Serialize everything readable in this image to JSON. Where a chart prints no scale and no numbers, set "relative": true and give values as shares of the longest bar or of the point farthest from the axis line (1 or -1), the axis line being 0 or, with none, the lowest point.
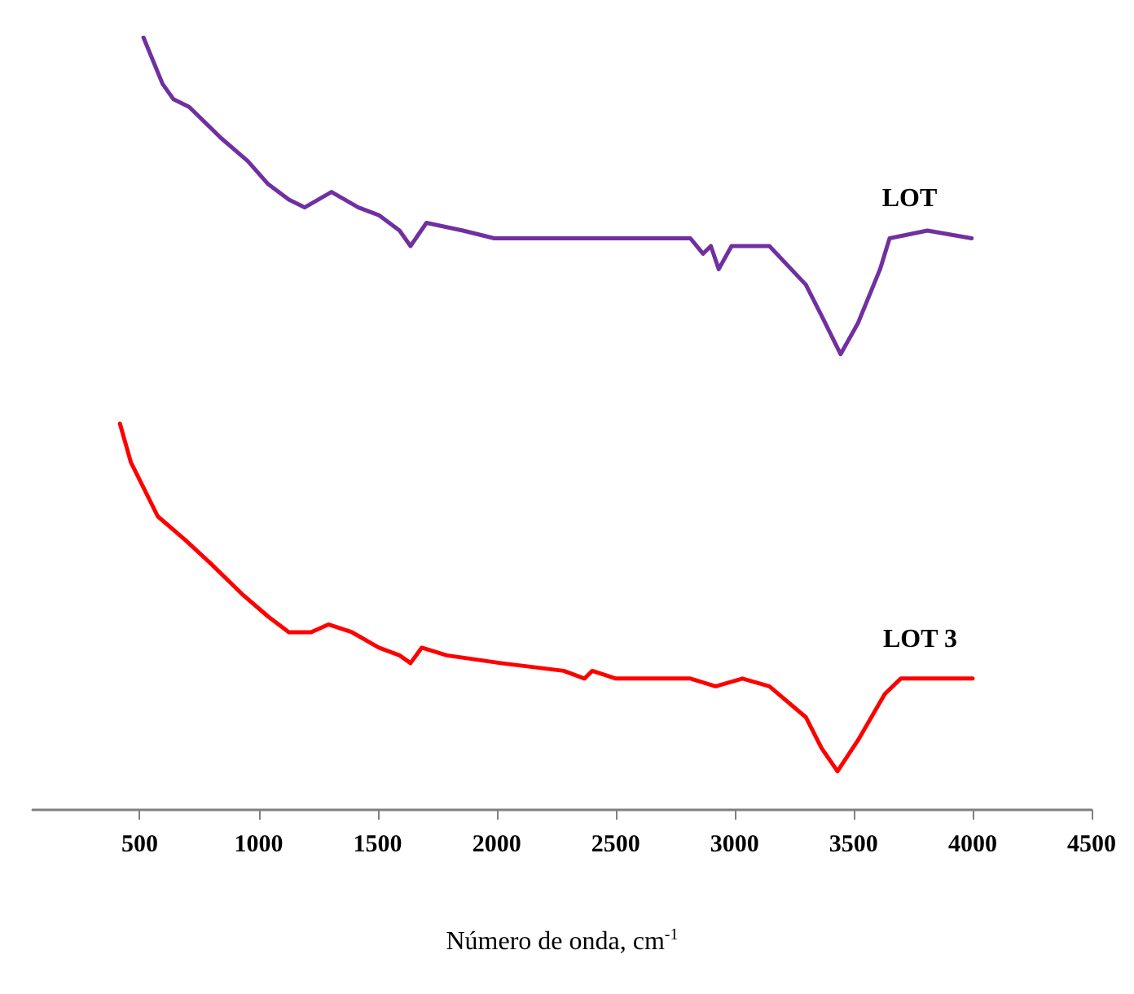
{
  "chart_data": {
    "type": "line",
    "relative": true,
    "xlabel": "Número de onda, cm$^{-1}$",
    "xlim": [
      50,
      4500
    ],
    "xticks": [
      500,
      1000,
      1500,
      2000,
      2500,
      3000,
      3500,
      4000,
      4500
    ],
    "grid": false,
    "legend": false,
    "marker": "none",
    "line_style": "solid",
    "series": [
      {
        "name": "LOT",
        "color": "#7030a0",
        "x": [
          516,
          596,
          642,
          708,
          841,
          954,
          1040,
          1127,
          1193,
          1306,
          1419,
          1505,
          1592,
          1638,
          1705,
          1858,
          1990,
          2303,
          2501,
          2814,
          2867,
          2900,
          2933,
          2987,
          3146,
          3299,
          3365,
          3445,
          3518,
          3611,
          3651,
          3810,
          3996
        ],
        "values": [
          1.0,
          0.94,
          0.92,
          0.91,
          0.87,
          0.84,
          0.81,
          0.79,
          0.78,
          0.8,
          0.78,
          0.77,
          0.75,
          0.73,
          0.76,
          0.75,
          0.74,
          0.74,
          0.74,
          0.74,
          0.72,
          0.73,
          0.7,
          0.73,
          0.73,
          0.68,
          0.64,
          0.59,
          0.63,
          0.7,
          0.74,
          0.75,
          0.74
        ]
      },
      {
        "name": "LOT 3",
        "color": "#ff0000",
        "x": [
          417,
          463,
          576,
          689,
          795,
          928,
          1041,
          1127,
          1220,
          1293,
          1392,
          1505,
          1592,
          1638,
          1685,
          1791,
          2017,
          2282,
          2369,
          2402,
          2501,
          2814,
          2920,
          3033,
          3146,
          3299,
          3365,
          3432,
          3518,
          3631,
          3698,
          4000
        ],
        "values": [
          0.5,
          0.45,
          0.38,
          0.35,
          0.32,
          0.28,
          0.25,
          0.23,
          0.23,
          0.24,
          0.23,
          0.21,
          0.2,
          0.19,
          0.21,
          0.2,
          0.19,
          0.18,
          0.17,
          0.18,
          0.17,
          0.17,
          0.16,
          0.17,
          0.16,
          0.12,
          0.08,
          0.05,
          0.09,
          0.15,
          0.17,
          0.17
        ]
      }
    ]
  }
}
